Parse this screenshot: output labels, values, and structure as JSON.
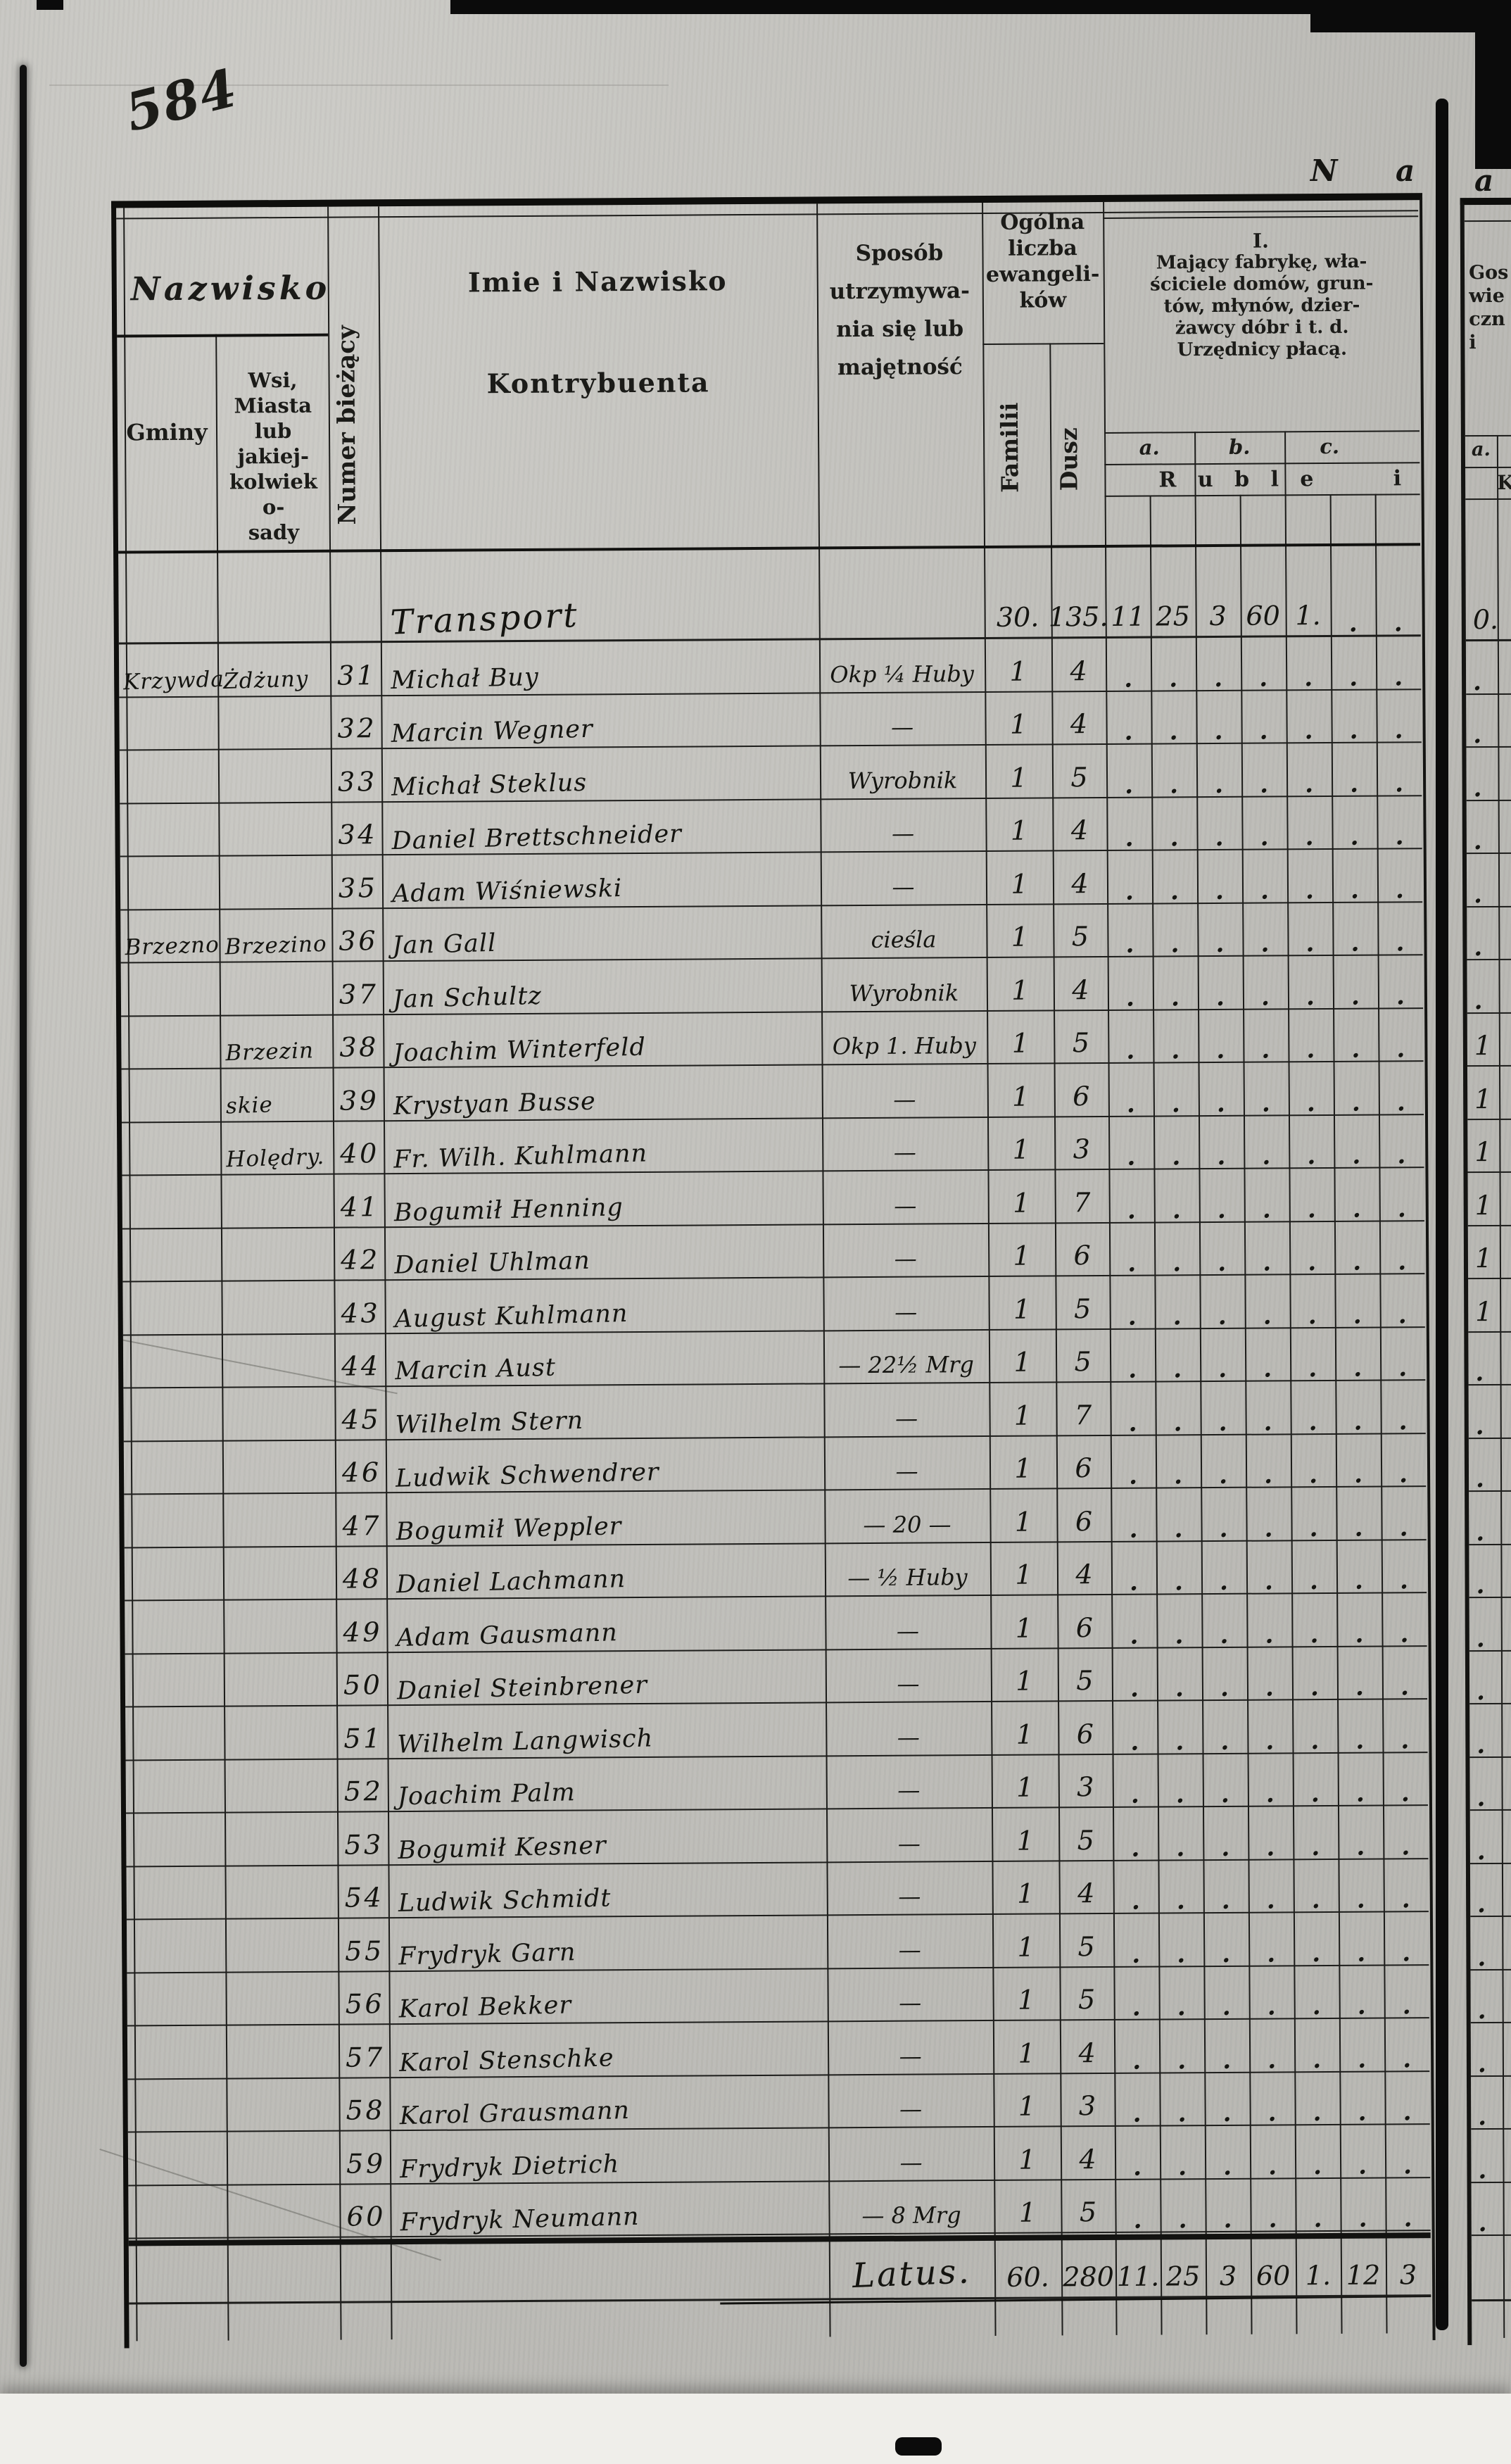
{
  "page": {
    "number": "584",
    "corner_letters_main": "N a",
    "corner_letter_next": "a"
  },
  "table": {
    "header": {
      "nazwisko": "Nazwisko",
      "gminy": "Gminy",
      "wsi": "Wsi, Miasta\nlub jakiej-\nkolwiek o-\nsady",
      "numer": "Numer bieżący",
      "imie_line1": "Imie i Nazwisko",
      "imie_line2": "Kontrybuenta",
      "sposob": "Sposób\n\nutrzymywa-\n\nnia się lub\n\nmajętność",
      "ogolna": "Ogólna\nliczba\newangeli-\nków",
      "familii": "Familii",
      "dusz": "Dusz",
      "section1_numeral": "I.",
      "section1": "Mający fabrykę, wła-\nściciele domów, grun-\ntów, młynów, dzier-\nżawcy dóbr i t. d.\nUrzędnicy płacą.",
      "sub_a": "a.",
      "sub_b": "b.",
      "sub_c": "c.",
      "ruble": "R u b l e",
      "ruble_i": "i",
      "next_page_fragments": "Gos\nwie\nczn\ni",
      "next_sub_a": "a.",
      "next_sub_k": "K"
    },
    "dot": ".",
    "dot_cells": [
      ".",
      ".",
      ".",
      ".",
      ".",
      ".",
      "."
    ],
    "transport": {
      "label": "Transport",
      "familii": "30.",
      "dusz": "135.",
      "cells": [
        "11",
        "25",
        "3",
        "60",
        "1.",
        ".",
        "."
      ],
      "next": "0."
    },
    "rows": [
      {
        "nr": "3 1",
        "gmina": "Krzywda",
        "wies": "Żdżuny",
        "name": "Michał Buy",
        "occ": "Okp ¼ Huby",
        "fam": "1",
        "dusz": "4",
        "next": "."
      },
      {
        "nr": "3 2",
        "gmina": "",
        "wies": "",
        "name": "Marcin Wegner",
        "occ": "—",
        "fam": "1",
        "dusz": "4",
        "next": "."
      },
      {
        "nr": "3 3",
        "gmina": "",
        "wies": "",
        "name": "Michał Steklus",
        "occ": "Wyrobnik",
        "fam": "1",
        "dusz": "5",
        "next": "."
      },
      {
        "nr": "3 4",
        "gmina": "",
        "wies": "",
        "name": "Daniel Brettschneider",
        "occ": "—",
        "fam": "1",
        "dusz": "4",
        "next": "."
      },
      {
        "nr": "3 5",
        "gmina": "",
        "wies": "",
        "name": "Adam Wiśniewski",
        "occ": "—",
        "fam": "1",
        "dusz": "4",
        "next": "."
      },
      {
        "nr": "3 6",
        "gmina": "Brzezno",
        "wies": "Brzezino",
        "name": "Jan Gall",
        "occ": "cieśla",
        "fam": "1",
        "dusz": "5",
        "next": "."
      },
      {
        "nr": "3 7",
        "gmina": "",
        "wies": "",
        "name": "Jan Schultz",
        "occ": "Wyrobnik",
        "fam": "1",
        "dusz": "4",
        "next": "."
      },
      {
        "nr": "3 8",
        "gmina": "",
        "wies": "Brzezin",
        "name": "Joachim Winterfeld",
        "occ": "Okp 1. Huby",
        "fam": "1",
        "dusz": "5",
        "next": "1"
      },
      {
        "nr": "3 9",
        "gmina": "",
        "wies": "skie",
        "name": "Krystyan Busse",
        "occ": "—",
        "fam": "1",
        "dusz": "6",
        "next": "1"
      },
      {
        "nr": "4 0",
        "gmina": "",
        "wies": "Holędry.",
        "name": "Fr. Wilh. Kuhlmann",
        "occ": "—",
        "fam": "1",
        "dusz": "3",
        "next": "1"
      },
      {
        "nr": "4 1",
        "gmina": "",
        "wies": "",
        "name": "Bogumił Henning",
        "occ": "—",
        "fam": "1",
        "dusz": "7",
        "next": "1"
      },
      {
        "nr": "4 2",
        "gmina": "",
        "wies": "",
        "name": "Daniel Uhlman",
        "occ": "—",
        "fam": "1",
        "dusz": "6",
        "next": "1"
      },
      {
        "nr": "4 3",
        "gmina": "",
        "wies": "",
        "name": "August Kuhlmann",
        "occ": "—",
        "fam": "1",
        "dusz": "5",
        "next": "1"
      },
      {
        "nr": "4 4",
        "gmina": "",
        "wies": "",
        "name": "Marcin Aust",
        "occ": "— 22½ Mrg",
        "fam": "1",
        "dusz": "5",
        "next": "."
      },
      {
        "nr": "4 5",
        "gmina": "",
        "wies": "",
        "name": "Wilhelm Stern",
        "occ": "—",
        "fam": "1",
        "dusz": "7",
        "next": "."
      },
      {
        "nr": "4 6",
        "gmina": "",
        "wies": "",
        "name": "Ludwik Schwendrer",
        "occ": "—",
        "fam": "1",
        "dusz": "6",
        "next": "."
      },
      {
        "nr": "4 7",
        "gmina": "",
        "wies": "",
        "name": "Bogumił Weppler",
        "occ": "— 20 —",
        "fam": "1",
        "dusz": "6",
        "next": "."
      },
      {
        "nr": "4 8",
        "gmina": "",
        "wies": "",
        "name": "Daniel Lachmann",
        "occ": "— ½ Huby",
        "fam": "1",
        "dusz": "4",
        "next": "."
      },
      {
        "nr": "4 9",
        "gmina": "",
        "wies": "",
        "name": "Adam Gausmann",
        "occ": "—",
        "fam": "1",
        "dusz": "6",
        "next": "."
      },
      {
        "nr": "5 0",
        "gmina": "",
        "wies": "",
        "name": "Daniel Steinbrener",
        "occ": "—",
        "fam": "1",
        "dusz": "5",
        "next": "."
      },
      {
        "nr": "5 1",
        "gmina": "",
        "wies": "",
        "name": "Wilhelm Langwisch",
        "occ": "—",
        "fam": "1",
        "dusz": "6",
        "next": "."
      },
      {
        "nr": "5 2",
        "gmina": "",
        "wies": "",
        "name": "Joachim Palm",
        "occ": "—",
        "fam": "1",
        "dusz": "3",
        "next": "."
      },
      {
        "nr": "5 3",
        "gmina": "",
        "wies": "",
        "name": "Bogumił Kesner",
        "occ": "—",
        "fam": "1",
        "dusz": "5",
        "next": "."
      },
      {
        "nr": "5 4",
        "gmina": "",
        "wies": "",
        "name": "Ludwik Schmidt",
        "occ": "—",
        "fam": "1",
        "dusz": "4",
        "next": "."
      },
      {
        "nr": "5 5",
        "gmina": "",
        "wies": "",
        "name": "Frydryk Garn",
        "occ": "—",
        "fam": "1",
        "dusz": "5",
        "next": "."
      },
      {
        "nr": "5 6",
        "gmina": "",
        "wies": "",
        "name": "Karol Bekker",
        "occ": "—",
        "fam": "1",
        "dusz": "5",
        "next": "."
      },
      {
        "nr": "5 7",
        "gmina": "",
        "wies": "",
        "name": "Karol Stenschke",
        "occ": "—",
        "fam": "1",
        "dusz": "4",
        "next": "."
      },
      {
        "nr": "5 8",
        "gmina": "",
        "wies": "",
        "name": "Karol Grausmann",
        "occ": "—",
        "fam": "1",
        "dusz": "3",
        "next": "."
      },
      {
        "nr": "5 9",
        "gmina": "",
        "wies": "",
        "name": "Frydryk Dietrich",
        "occ": "—",
        "fam": "1",
        "dusz": "4",
        "next": "."
      },
      {
        "nr": "6 0",
        "gmina": "",
        "wies": "",
        "name": "Frydryk Neumann",
        "occ": "— 8 Mrg",
        "fam": "1",
        "dusz": "5",
        "next": "."
      }
    ],
    "latus": {
      "label": "Latus.",
      "familii": "60.",
      "dusz": "280",
      "cells": [
        "11.",
        "25",
        "3",
        "60",
        "1.",
        "12",
        "3"
      ],
      "next": ""
    }
  }
}
